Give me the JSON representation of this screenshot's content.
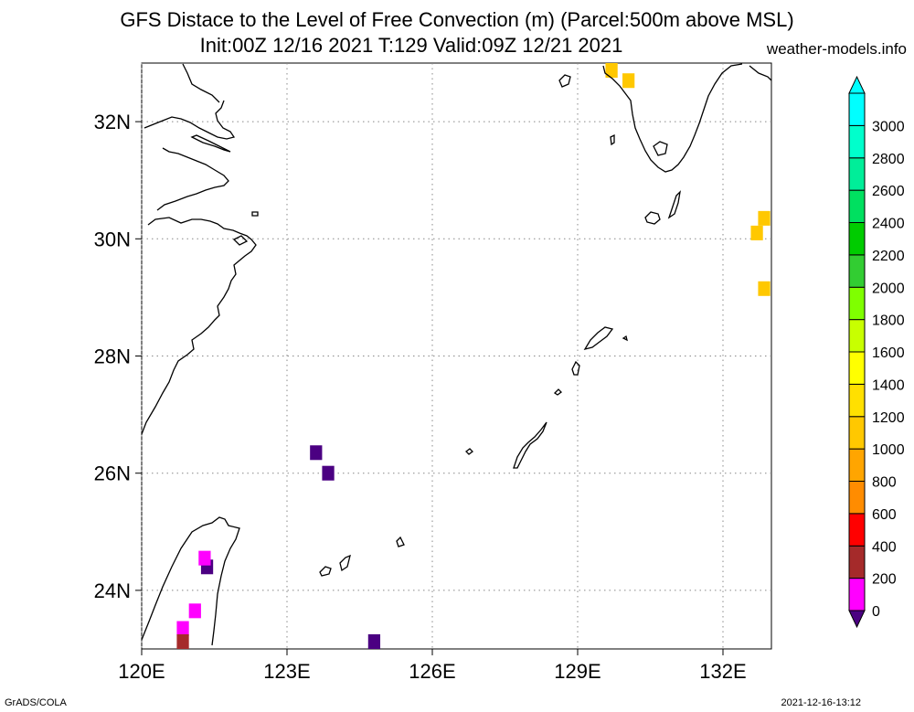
{
  "header": {
    "title_line1": "GFS Distace to the Level of Free Convection (m) (Parcel:500m above MSL)",
    "title_line2": "Init:00Z 12/16 2021 T:129 Valid:09Z 12/21 2021",
    "site": "weather-models.info"
  },
  "axes": {
    "lon_labels": [
      "120E",
      "123E",
      "126E",
      "129E",
      "132E"
    ],
    "lon_values": [
      120,
      123,
      126,
      129,
      132
    ],
    "lat_labels": [
      "24N",
      "26N",
      "28N",
      "30N",
      "32N"
    ],
    "lat_values": [
      24,
      26,
      28,
      30,
      32
    ],
    "lon_range": [
      120,
      133
    ],
    "lat_range": [
      23,
      33
    ]
  },
  "colorbar": {
    "labels": [
      "0",
      "200",
      "400",
      "600",
      "800",
      "1000",
      "1200",
      "1400",
      "1600",
      "1800",
      "2000",
      "2200",
      "2400",
      "2600",
      "2800",
      "3000"
    ],
    "colors": [
      "#4b0082",
      "#ff00ff",
      "#a52a2a",
      "#ff0000",
      "#ff8c00",
      "#ffa500",
      "#ffc800",
      "#ffe000",
      "#ffff00",
      "#c8ff00",
      "#7fff00",
      "#32cd32",
      "#00cc00",
      "#00e060",
      "#00ee99",
      "#00ffcc",
      "#00ffff"
    ]
  },
  "shaded_cells": [
    {
      "lon": 123.6,
      "lat": 26.35,
      "color": "#4b0082"
    },
    {
      "lon": 123.85,
      "lat": 26.0,
      "color": "#4b0082"
    },
    {
      "lon": 121.35,
      "lat": 24.4,
      "color": "#4b0082"
    },
    {
      "lon": 121.3,
      "lat": 24.55,
      "color": "#ff00ff"
    },
    {
      "lon": 121.1,
      "lat": 23.65,
      "color": "#ff00ff"
    },
    {
      "lon": 120.85,
      "lat": 23.35,
      "color": "#ff00ff"
    },
    {
      "lon": 120.85,
      "lat": 23.1,
      "color": "#a52a2a"
    },
    {
      "lon": 124.8,
      "lat": 23.1,
      "color": "#4b0082"
    },
    {
      "lon": 129.7,
      "lat": 32.9,
      "color": "#ffc800"
    },
    {
      "lon": 130.05,
      "lat": 32.7,
      "color": "#ffc800"
    },
    {
      "lon": 132.7,
      "lat": 30.1,
      "color": "#ffc800"
    },
    {
      "lon": 132.85,
      "lat": 30.35,
      "color": "#ffc800"
    },
    {
      "lon": 132.85,
      "lat": 29.15,
      "color": "#ffc800"
    }
  ],
  "footer": {
    "left": "GrADS/COLA",
    "right": "2021-12-16-13:12"
  }
}
